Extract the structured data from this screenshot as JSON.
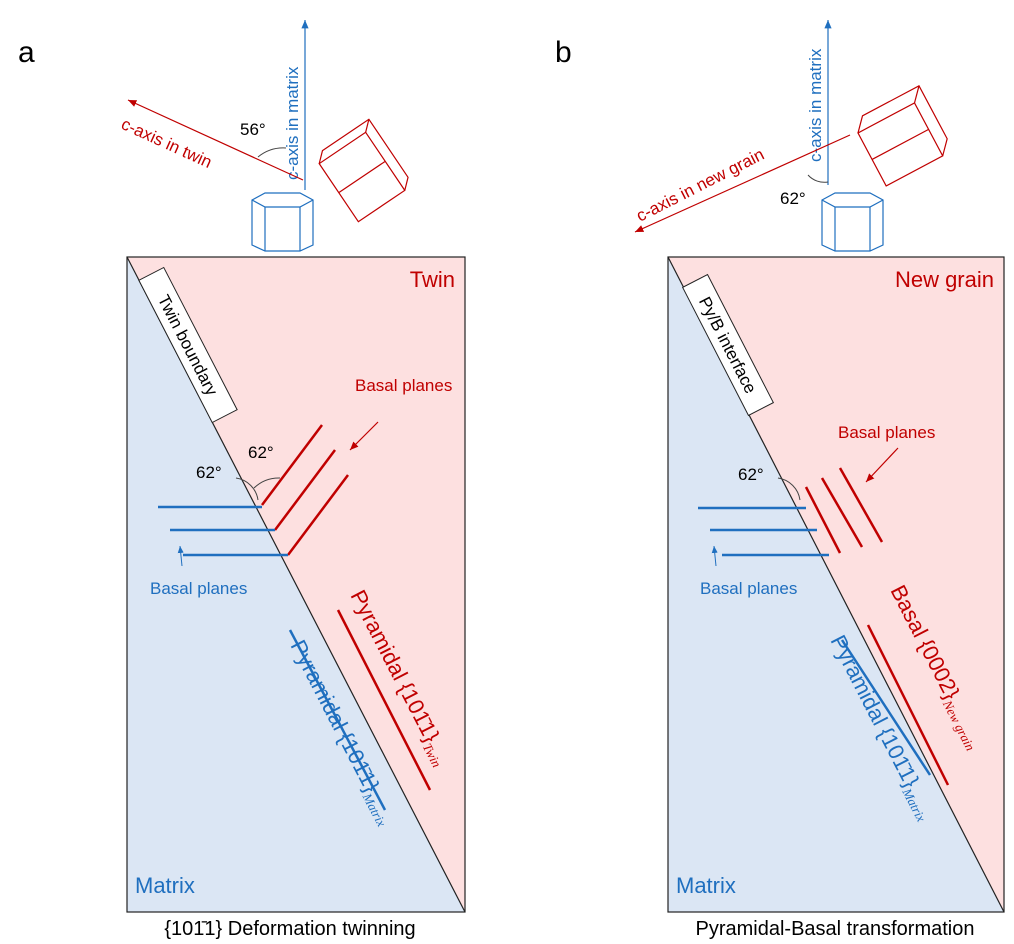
{
  "panels": [
    {
      "label": "a",
      "region_top": "Twin",
      "region_bottom": "Matrix",
      "boundary": "Twin boundary",
      "basal_planes_upper": "Basal planes",
      "basal_planes_lower": "Basal planes",
      "angle_upper": "62°",
      "angle_lower": "62°",
      "c_axis_matrix": "c-axis in matrix",
      "c_axis_other": "c-axis in twin",
      "c_axis_angle": "56°",
      "plane_upper": {
        "text": "Pyramidal {101̄1}",
        "sub": "Twin"
      },
      "plane_lower": {
        "text": "Pyramidal {101̄1}",
        "sub": "Matrix"
      },
      "caption": "{101̄1} Deformation twinning"
    },
    {
      "label": "b",
      "region_top": "New grain",
      "region_bottom": "Matrix",
      "boundary": "Py/B interface",
      "basal_planes_upper": "Basal planes",
      "basal_planes_lower": "Basal planes",
      "angle_lower": "62°",
      "c_axis_matrix": "c-axis in matrix",
      "c_axis_other": "c-axis in new grain",
      "c_axis_angle": "62°",
      "plane_upper": {
        "text": "Basal {0002}",
        "sub": "New grain"
      },
      "plane_lower": {
        "text": "Pyramidal {101̄1}",
        "sub": "Matrix"
      },
      "caption": "Pyramidal-Basal transformation"
    }
  ]
}
